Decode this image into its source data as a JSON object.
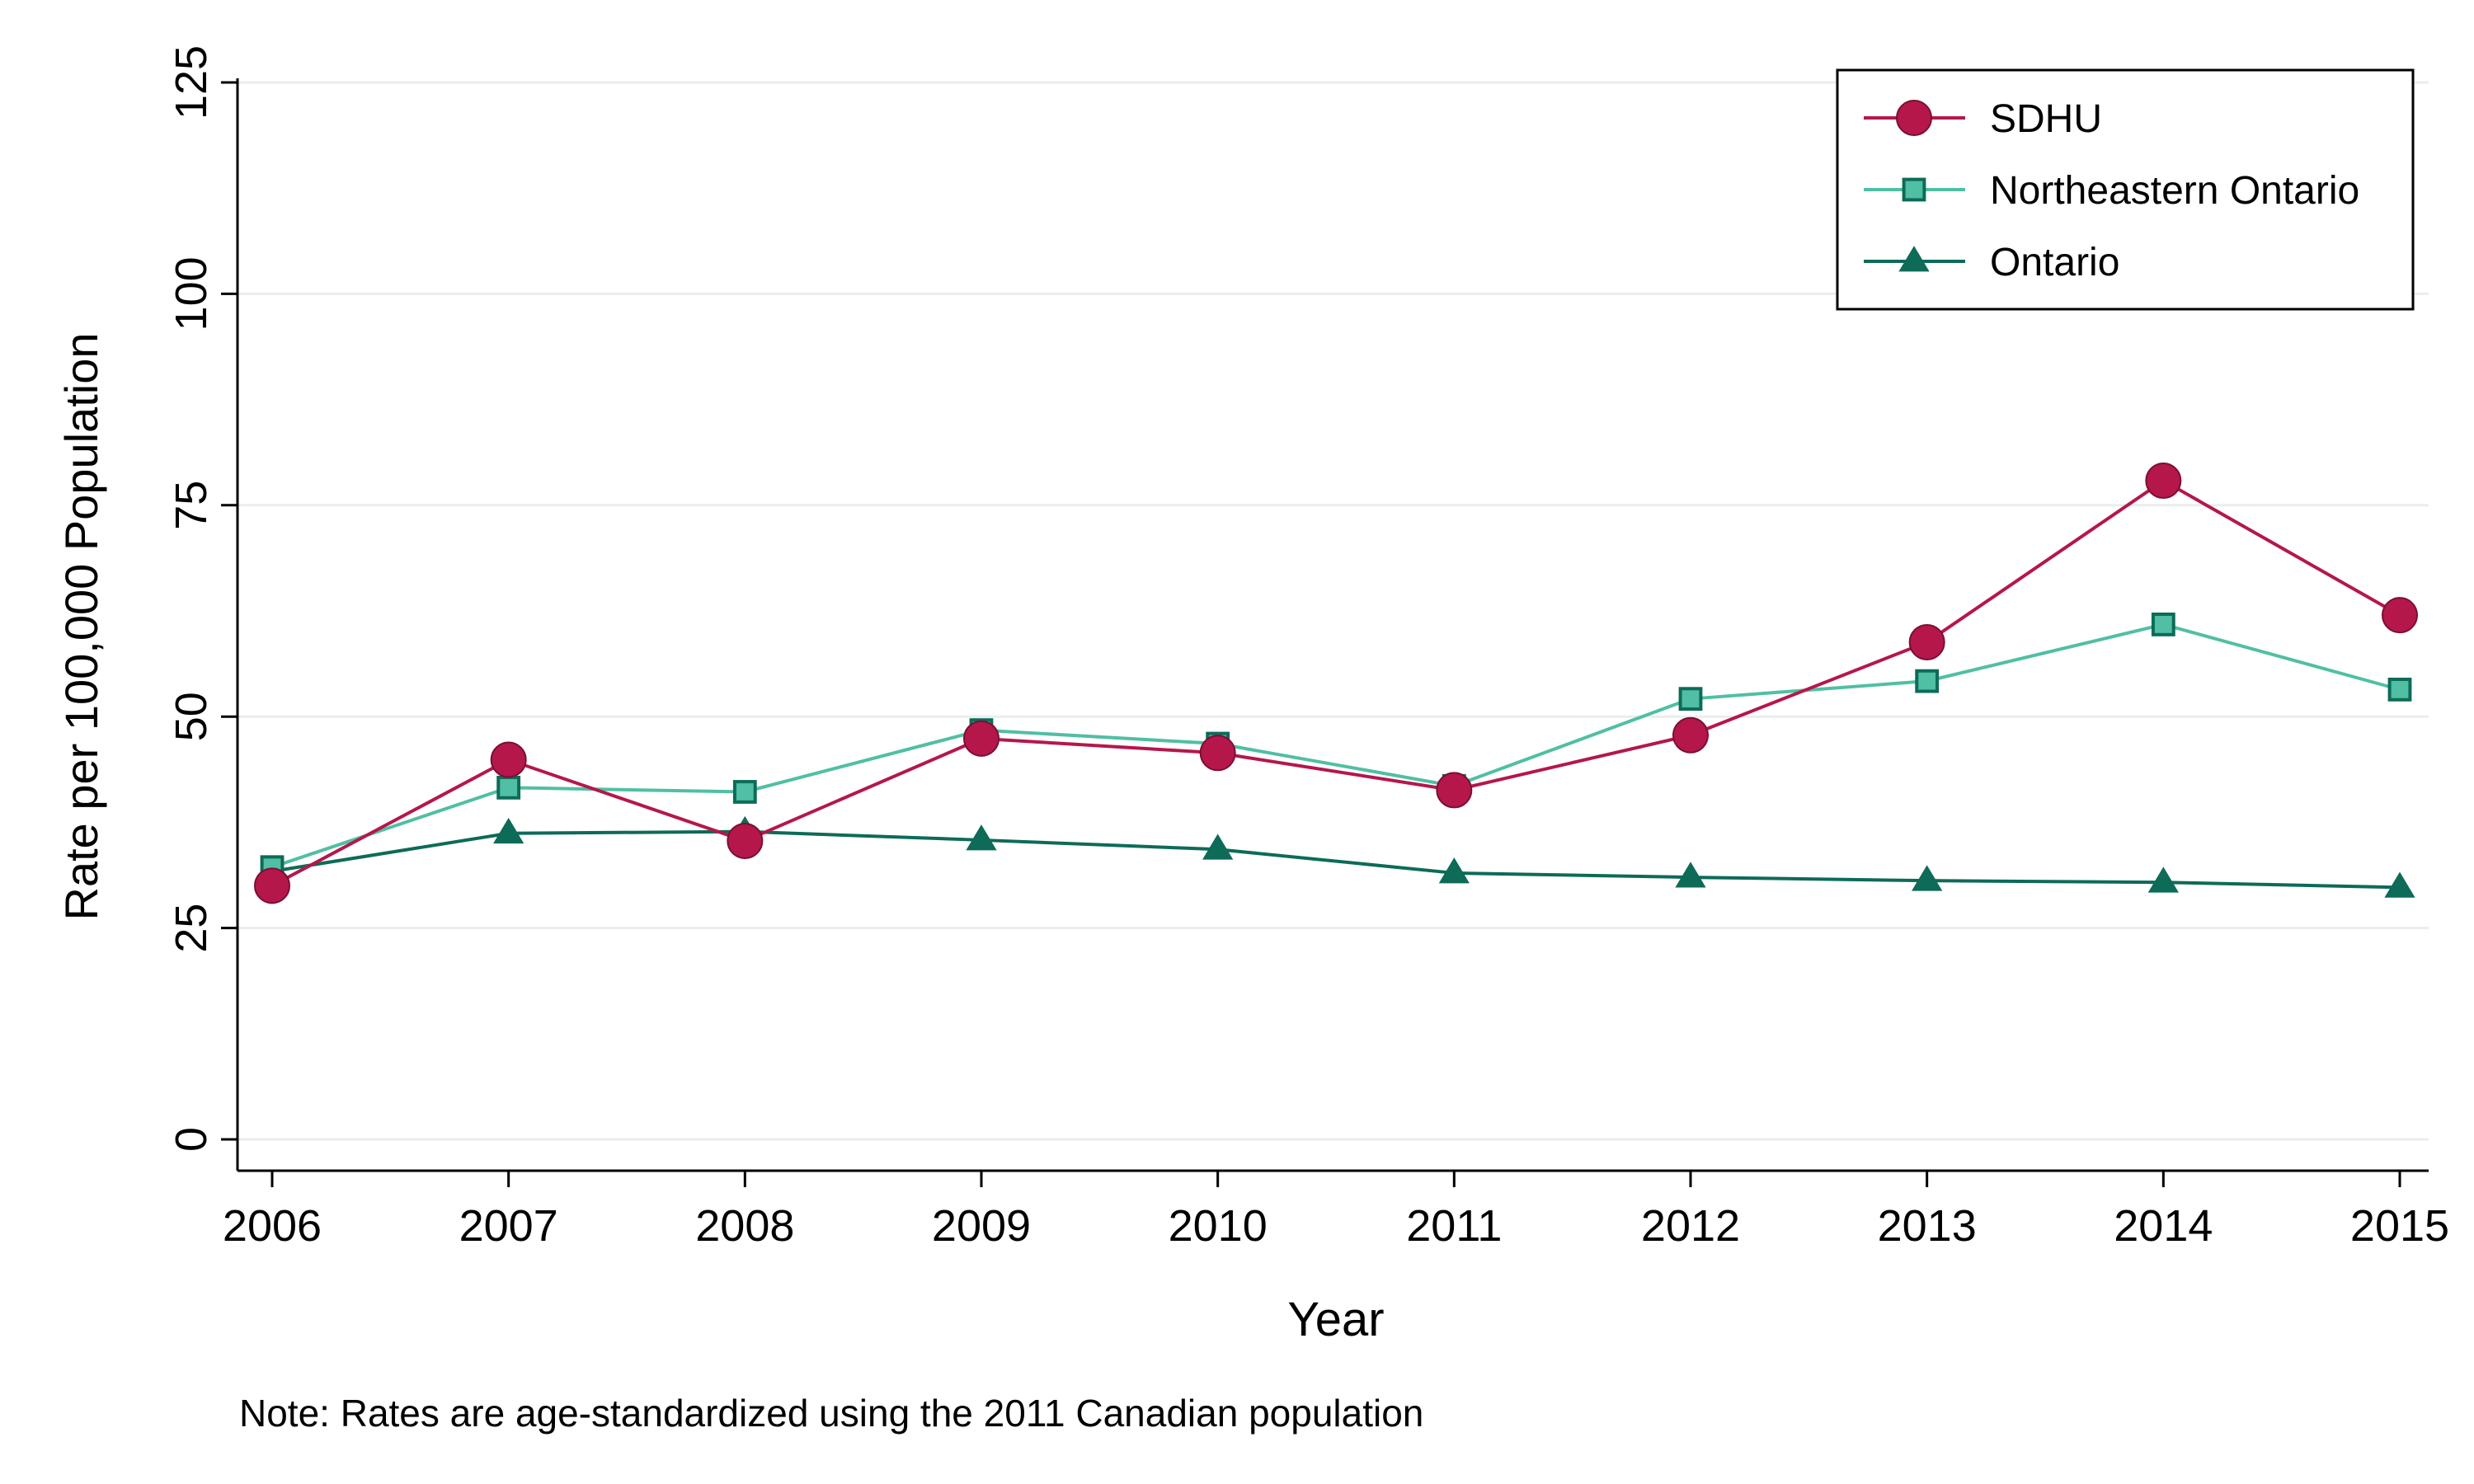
{
  "chart_data": {
    "type": "line",
    "title": "",
    "xlabel": "Year",
    "ylabel": "Rate per 100,000 Population",
    "note": "Note: Rates are age-standardized using the 2011 Canadian population",
    "x": [
      2006,
      2007,
      2008,
      2009,
      2010,
      2011,
      2012,
      2013,
      2014,
      2015
    ],
    "x_tick_labels": [
      "2006",
      "2007",
      "2008",
      "2009",
      "2010",
      "2011",
      "2012",
      "2013",
      "2014",
      "2015"
    ],
    "ylim": [
      0,
      125
    ],
    "y_ticks": [
      0,
      25,
      50,
      75,
      100,
      125
    ],
    "y_tick_labels": [
      "0",
      "25",
      "50",
      "75",
      "100",
      "125"
    ],
    "grid": true,
    "legend_position": "top-right",
    "series": [
      {
        "name": "SDHU",
        "marker": "circle",
        "color": "#B5174B",
        "values": [
          30.0,
          44.9,
          35.3,
          47.4,
          45.7,
          41.3,
          47.8,
          58.8,
          77.9,
          62.0
        ]
      },
      {
        "name": "Northeastern Ontario",
        "marker": "square",
        "color": "#50BFA3",
        "values": [
          32.2,
          41.6,
          41.1,
          48.4,
          46.8,
          41.8,
          52.1,
          54.2,
          60.9,
          53.2
        ]
      },
      {
        "name": "Ontario",
        "marker": "triangle",
        "color": "#0D6B58",
        "values": [
          31.7,
          36.2,
          36.4,
          35.4,
          34.3,
          31.5,
          31.0,
          30.6,
          30.4,
          29.8
        ]
      }
    ]
  }
}
